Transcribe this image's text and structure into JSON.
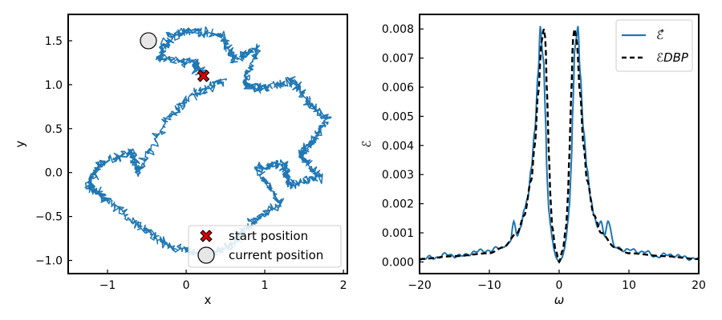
{
  "chart_data": [
    {
      "type": "line",
      "subtype": "random-walk trajectory",
      "xlabel": "x",
      "ylabel": "y",
      "xlim": [
        -1.5,
        2.05
      ],
      "ylim": [
        -1.15,
        1.8
      ],
      "xticks": [
        -1,
        0,
        1,
        2
      ],
      "xtick_labels": [
        "−1",
        "0",
        "1",
        "2"
      ],
      "yticks": [
        -1.0,
        -0.5,
        0.0,
        0.5,
        1.0,
        1.5
      ],
      "ytick_labels": [
        "−1.0",
        "−0.5",
        "0.0",
        "0.5",
        "1.0",
        "1.5"
      ],
      "grid": false,
      "line_color": "#1f77b4",
      "path_waypoints": {
        "x": [
          0.22,
          0.1,
          -0.35,
          -0.2,
          0.05,
          0.45,
          0.6,
          0.9,
          0.75,
          0.95,
          1.35,
          1.55,
          1.8,
          1.6,
          1.45,
          1.7,
          1.3,
          1.25,
          0.9,
          1.2,
          0.85,
          0.6,
          0.3,
          -0.2,
          -0.6,
          -1.0,
          -1.25,
          -1.1,
          -0.7,
          -0.6,
          -0.25,
          0.1,
          0.5
        ],
        "y": [
          1.1,
          1.25,
          1.3,
          1.55,
          1.62,
          1.55,
          1.3,
          1.4,
          1.0,
          0.95,
          1.05,
          0.8,
          0.6,
          0.35,
          0.2,
          -0.05,
          -0.15,
          0.1,
          0.05,
          -0.35,
          -0.55,
          -0.8,
          -0.95,
          -0.85,
          -0.6,
          -0.3,
          -0.15,
          0.1,
          0.25,
          0.0,
          0.6,
          0.9,
          1.05
        ]
      },
      "markers": [
        {
          "name": "start position",
          "x": 0.22,
          "y": 1.1,
          "marker": "X",
          "color": "#dd0000"
        },
        {
          "name": "current position",
          "x": -0.48,
          "y": 1.5,
          "marker": "o",
          "color": "#e6e6e6"
        }
      ],
      "legend": {
        "placement": "lower-right",
        "entries": [
          "start position",
          "current position"
        ]
      }
    },
    {
      "type": "line",
      "xlabel": "ω",
      "ylabel": "ℰ",
      "xlim": [
        -20,
        20
      ],
      "ylim": [
        -0.0004,
        0.0085
      ],
      "xticks": [
        -20,
        -10,
        0,
        10,
        20
      ],
      "xtick_labels": [
        "−20",
        "−10",
        "0",
        "10",
        "20"
      ],
      "yticks": [
        0.0,
        0.001,
        0.002,
        0.003,
        0.004,
        0.005,
        0.006,
        0.007,
        0.008
      ],
      "ytick_labels": [
        "0.000",
        "0.001",
        "0.002",
        "0.003",
        "0.004",
        "0.005",
        "0.006",
        "0.007",
        "0.008"
      ],
      "grid": false,
      "legend": {
        "placement": "top-right",
        "entries": [
          "ℰ̂",
          "ℰDBP"
        ]
      },
      "series": [
        {
          "name": "ℰ̂",
          "style": "solid",
          "color": "#1f77b4",
          "x": [
            -20,
            -18,
            -16,
            -14,
            -12,
            -10,
            -8,
            -7,
            -6.5,
            -6,
            -5.5,
            -5,
            -4.5,
            -4,
            -3.5,
            -3,
            -2.7,
            -2.4,
            -2.2,
            -2,
            -1.7,
            -1.5,
            -1.2,
            -1,
            -0.7,
            -0.5,
            -0.3,
            0,
            0.3,
            0.5,
            0.7,
            1,
            1.2,
            1.5,
            1.7,
            2,
            2.2,
            2.4,
            2.7,
            3,
            3.5,
            4,
            4.5,
            5,
            5.5,
            6,
            6.5,
            7,
            8,
            10,
            12,
            14,
            16,
            18,
            20
          ],
          "y": [
            0.0001,
            0.00015,
            0.00025,
            0.0002,
            0.00035,
            0.0004,
            0.0005,
            0.0007,
            0.0014,
            0.0009,
            0.0012,
            0.0018,
            0.0022,
            0.0032,
            0.0045,
            0.0065,
            0.0081,
            0.0072,
            0.0068,
            0.0052,
            0.0028,
            0.0018,
            0.0012,
            0.0008,
            0.0004,
            0.0002,
            0.0001,
            0.0,
            0.0001,
            0.0002,
            0.0004,
            0.0008,
            0.0013,
            0.002,
            0.0032,
            0.0055,
            0.0072,
            0.0076,
            0.0081,
            0.0065,
            0.0045,
            0.0032,
            0.0022,
            0.0016,
            0.0012,
            0.0014,
            0.0009,
            0.0014,
            0.0005,
            0.0004,
            0.00035,
            0.0002,
            0.00025,
            0.00015,
            0.0001
          ]
        },
        {
          "name": "ℰDBP",
          "style": "dashed",
          "color": "#000000",
          "x": [
            -20,
            -15,
            -10,
            -8,
            -6,
            -5,
            -4,
            -3.5,
            -3,
            -2.5,
            -2.2,
            -2,
            -1.7,
            -1.5,
            -1.2,
            -1,
            -0.5,
            0,
            0.5,
            1,
            1.2,
            1.5,
            1.7,
            2,
            2.2,
            2.5,
            3,
            3.5,
            4,
            5,
            6,
            8,
            10,
            15,
            20
          ],
          "y": [
            0.0001,
            0.0002,
            0.0003,
            0.0005,
            0.001,
            0.0016,
            0.0028,
            0.004,
            0.0058,
            0.0076,
            0.008,
            0.0077,
            0.0056,
            0.0038,
            0.002,
            0.0012,
            0.0004,
            0.0,
            0.0004,
            0.0012,
            0.002,
            0.0038,
            0.0056,
            0.0077,
            0.008,
            0.0076,
            0.0058,
            0.004,
            0.0028,
            0.0016,
            0.001,
            0.0005,
            0.0003,
            0.0002,
            0.0001
          ]
        }
      ]
    }
  ]
}
